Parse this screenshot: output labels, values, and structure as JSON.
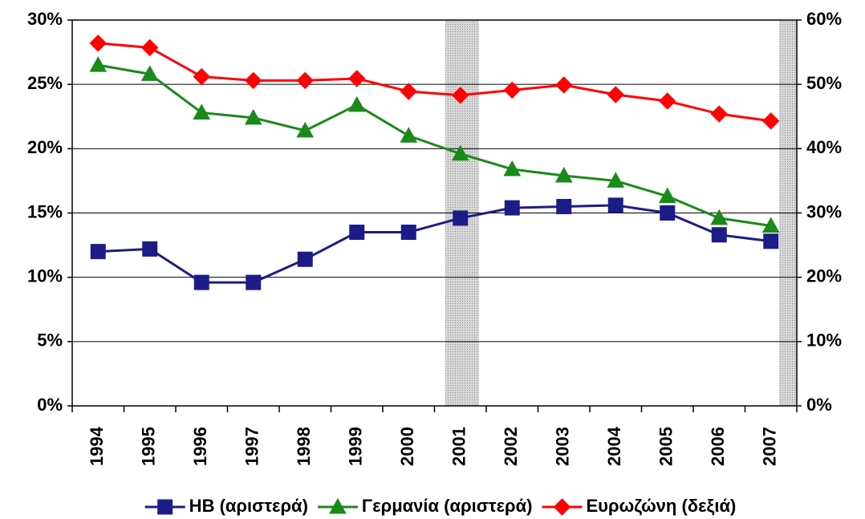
{
  "chart_data": {
    "type": "line",
    "categories": [
      "1994",
      "1995",
      "1996",
      "1997",
      "1998",
      "1999",
      "2000",
      "2001",
      "2002",
      "2003",
      "2004",
      "2005",
      "2006",
      "2007"
    ],
    "series": [
      {
        "name": "ΗΒ (αριστερά)",
        "color": "#1c1c88",
        "marker": "square",
        "values": [
          12.0,
          12.2,
          9.6,
          9.6,
          11.4,
          13.5,
          13.5,
          14.6,
          15.4,
          15.5,
          15.6,
          15.0,
          13.3,
          12.8
        ]
      },
      {
        "name": "Γερμανία (αριστερά)",
        "color": "#1a8a1a",
        "marker": "triangle",
        "values": [
          26.5,
          25.8,
          22.8,
          22.4,
          21.4,
          23.4,
          21.0,
          19.6,
          18.4,
          17.9,
          17.5,
          16.3,
          14.6,
          14.0
        ]
      },
      {
        "name": "Ευρωζώνη (δεξιά)",
        "color": "#ff0000",
        "marker": "diamond",
        "axis": "y2",
        "values": [
          56.4,
          55.7,
          51.2,
          50.6,
          50.6,
          50.9,
          48.9,
          48.3,
          49.1,
          49.9,
          48.4,
          47.4,
          45.4,
          44.3
        ]
      }
    ],
    "ylim": [
      0,
      30
    ],
    "yticks": [
      {
        "value": 0,
        "label": "0%"
      },
      {
        "value": 5,
        "label": "5%"
      },
      {
        "value": 10,
        "label": "10%"
      },
      {
        "value": 15,
        "label": "15%"
      },
      {
        "value": 20,
        "label": "20%"
      },
      {
        "value": 25,
        "label": "25%"
      },
      {
        "value": 30,
        "label": "30%"
      }
    ],
    "y2lim": [
      0,
      60
    ],
    "y2ticks": [
      {
        "value": 0,
        "label": "0%"
      },
      {
        "value": 10,
        "label": "10%"
      },
      {
        "value": 20,
        "label": "20%"
      },
      {
        "value": 30,
        "label": "30%"
      },
      {
        "value": 40,
        "label": "40%"
      },
      {
        "value": 50,
        "label": "50%"
      },
      {
        "value": 60,
        "label": "60%"
      }
    ],
    "grid": true,
    "legend": "bottom"
  }
}
